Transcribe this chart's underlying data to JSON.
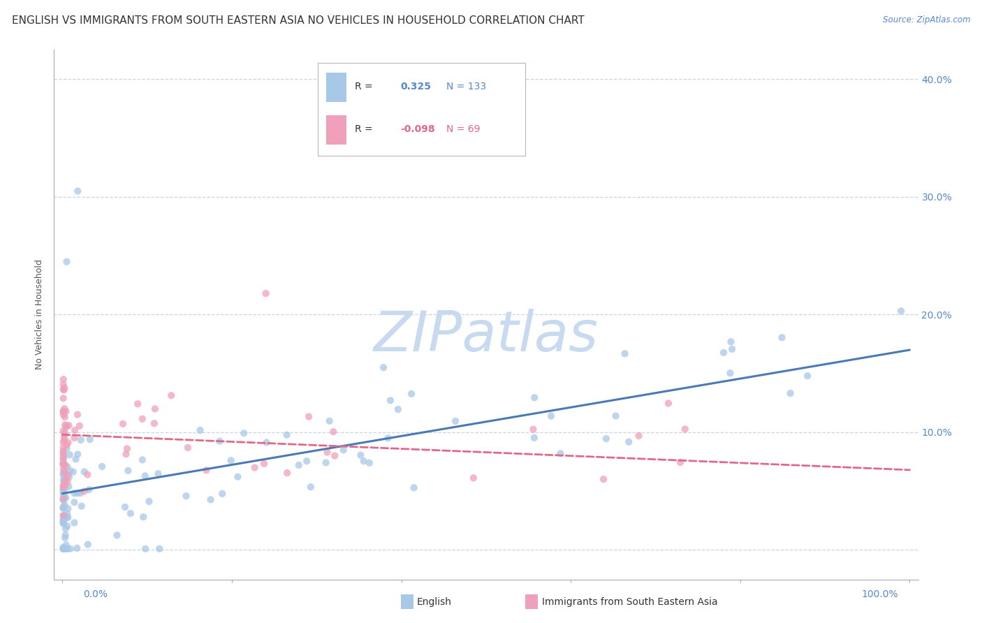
{
  "title": "ENGLISH VS IMMIGRANTS FROM SOUTH EASTERN ASIA NO VEHICLES IN HOUSEHOLD CORRELATION CHART",
  "source": "Source: ZipAtlas.com",
  "ylabel": "No Vehicles in Household",
  "legend_r_blue": "0.325",
  "legend_n_blue": "133",
  "legend_r_pink": "-0.098",
  "legend_n_pink": "69",
  "blue_color": "#a8c8e8",
  "pink_color": "#f0a0b8",
  "blue_line_color": "#4a7ab5",
  "pink_line_color": "#e06888",
  "background_color": "#ffffff",
  "grid_color": "#c8d4e8",
  "watermark": "ZIPatlas",
  "watermark_color": "#c8daf0",
  "title_fontsize": 11,
  "axis_label_fontsize": 9,
  "tick_fontsize": 10,
  "blue_trend_x0": 0.0,
  "blue_trend_y0": 0.048,
  "blue_trend_x1": 1.0,
  "blue_trend_y1": 0.17,
  "pink_trend_x0": 0.0,
  "pink_trend_y0": 0.098,
  "pink_trend_x1": 1.0,
  "pink_trend_y1": 0.068,
  "xlim_min": -0.01,
  "xlim_max": 1.01,
  "ylim_min": -0.025,
  "ylim_max": 0.425
}
